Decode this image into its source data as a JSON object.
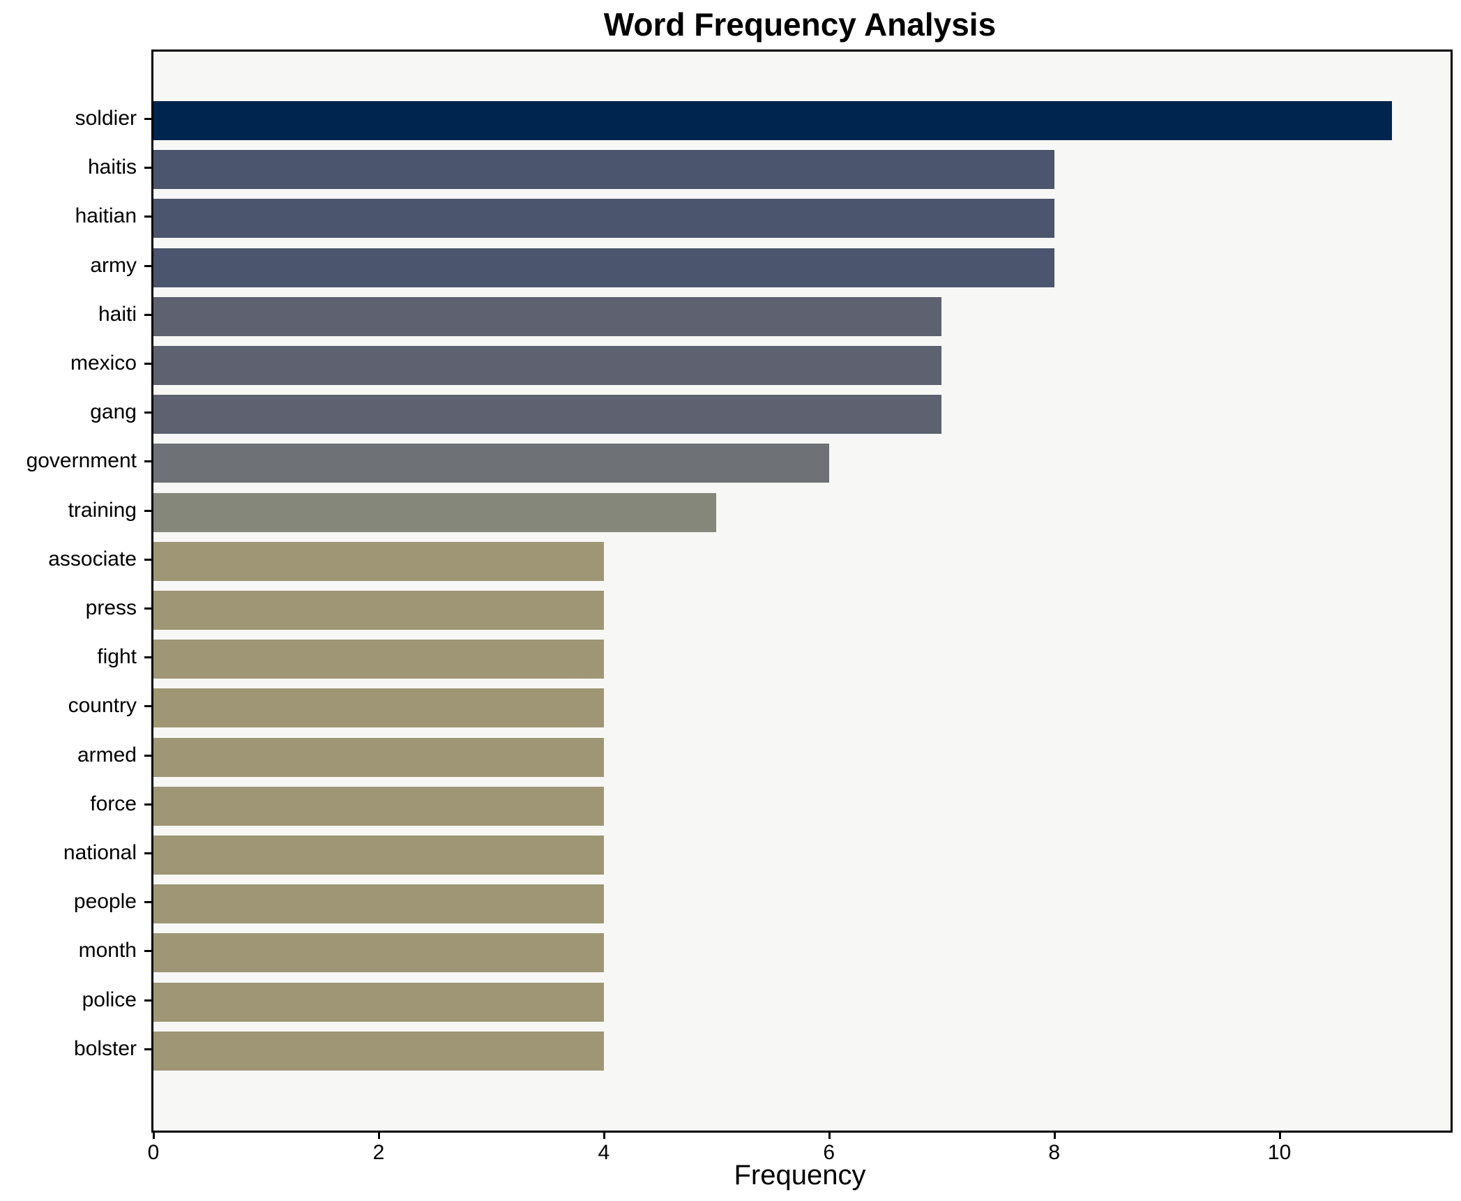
{
  "figure": {
    "title": "Word Frequency Analysis"
  },
  "chart_data": {
    "type": "bar",
    "orientation": "horizontal",
    "title": "Word Frequency Analysis",
    "xlabel": "Frequency",
    "ylabel": "",
    "categories": [
      "soldier",
      "haitis",
      "haitian",
      "army",
      "haiti",
      "mexico",
      "gang",
      "government",
      "training",
      "associate",
      "press",
      "fight",
      "country",
      "armed",
      "force",
      "national",
      "people",
      "month",
      "police",
      "bolster"
    ],
    "values": [
      11,
      8,
      8,
      8,
      7,
      7,
      7,
      6,
      5,
      4,
      4,
      4,
      4,
      4,
      4,
      4,
      4,
      4,
      4,
      4
    ],
    "bar_colors": [
      "#00254e",
      "#4b556d",
      "#4b556d",
      "#4b556d",
      "#5d6170",
      "#5d6170",
      "#5d6170",
      "#6e7175",
      "#85877b",
      "#9e9674",
      "#9e9674",
      "#9e9674",
      "#9e9674",
      "#9e9674",
      "#9e9674",
      "#9e9674",
      "#9e9674",
      "#9e9674",
      "#9e9674",
      "#9e9674"
    ],
    "xticks": [
      0,
      2,
      4,
      6,
      8,
      10
    ],
    "xlim": [
      0,
      11.52
    ],
    "grid": false,
    "legend": false,
    "plot_background": "#f7f7f6",
    "figure_background": "#ffffff",
    "spine_color": "#000000",
    "tick_label_color": "#000000"
  }
}
